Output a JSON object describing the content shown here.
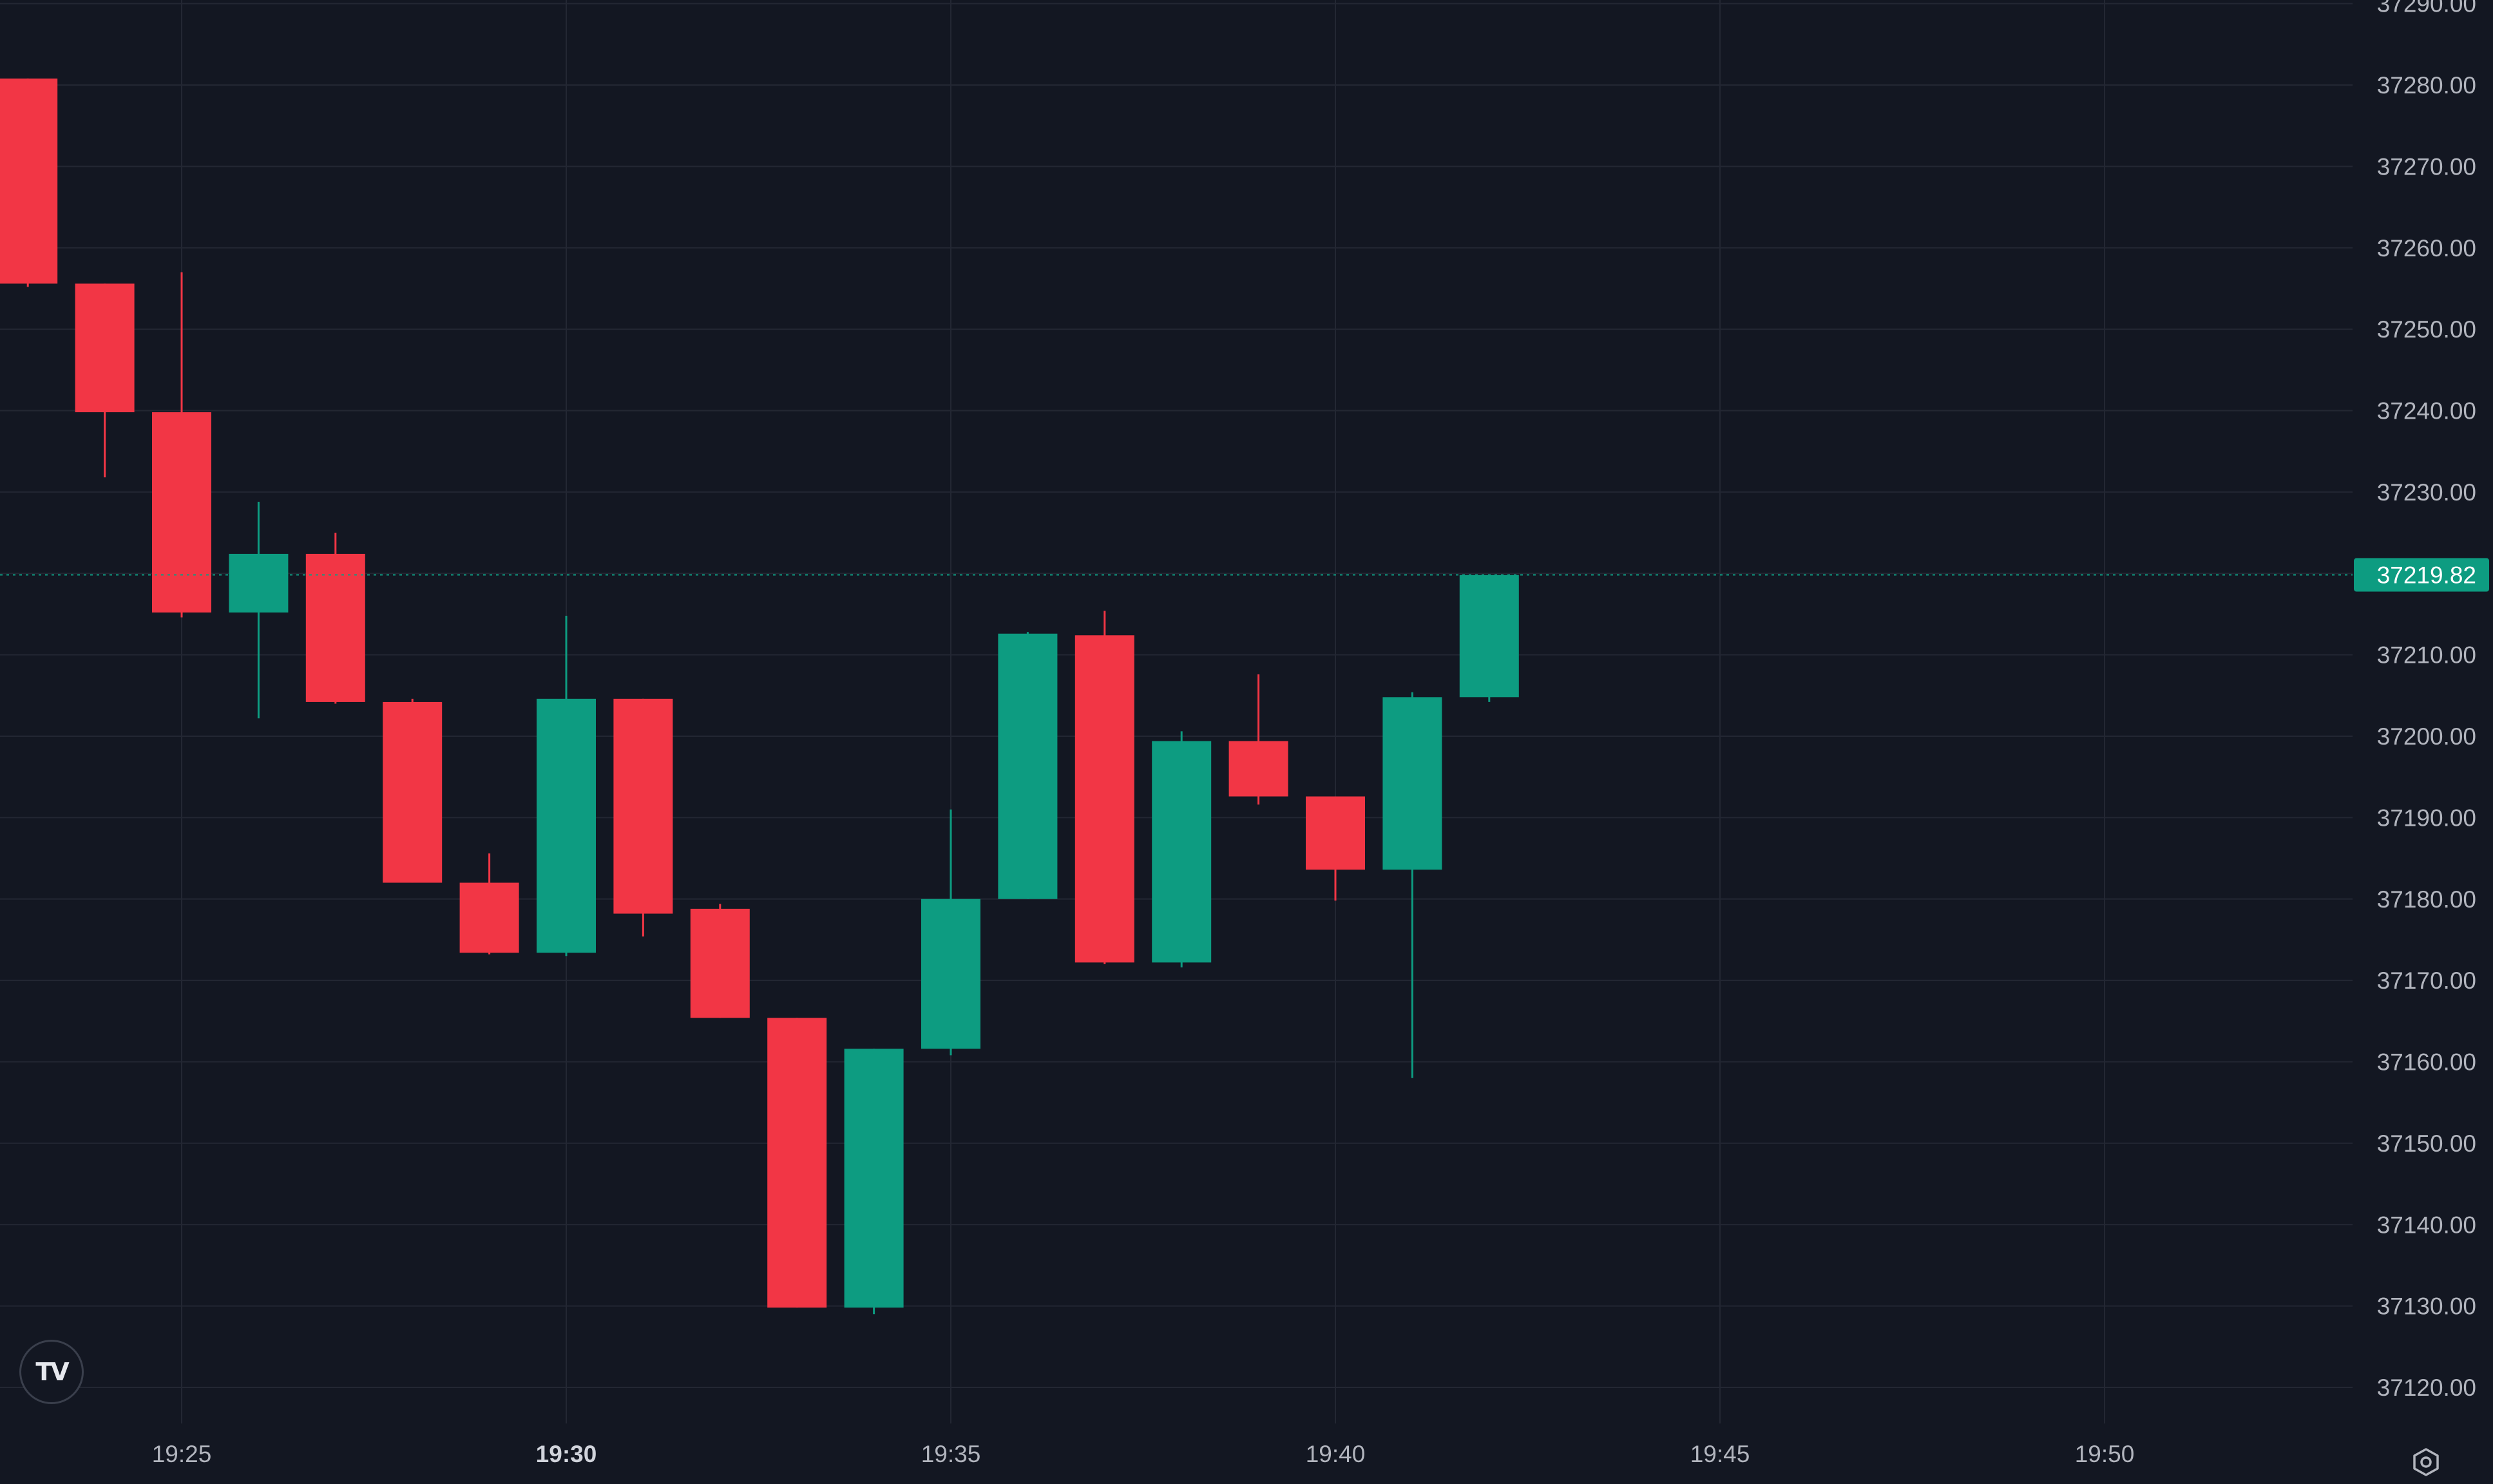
{
  "colors": {
    "background": "#131722",
    "grid": "#232733",
    "text": "#b2b5be",
    "up": "#0d9c81",
    "down": "#f23645",
    "last_price_line": "#0d9c81"
  },
  "logo": {
    "text": "TV",
    "icon": "tradingview-logo-icon"
  },
  "settings": {
    "icon": "settings-gear-icon"
  },
  "chart_data": {
    "type": "candlestick",
    "y_axis": {
      "ylim": [
        37116,
        37290
      ],
      "ticks": [
        "37290.00",
        "37280.00",
        "37270.00",
        "37260.00",
        "37250.00",
        "37240.00",
        "37230.00",
        "37220.00",
        "37210.00",
        "37200.00",
        "37190.00",
        "37180.00",
        "37170.00",
        "37160.00",
        "37150.00",
        "37140.00",
        "37130.00",
        "37120.00"
      ]
    },
    "x_axis": {
      "ticks": [
        {
          "time": "19:25",
          "bold": false
        },
        {
          "time": "19:30",
          "bold": true
        },
        {
          "time": "19:35",
          "bold": false
        },
        {
          "time": "19:40",
          "bold": false
        },
        {
          "time": "19:45",
          "bold": false
        },
        {
          "time": "19:50",
          "bold": false
        }
      ]
    },
    "last_price": {
      "label": "37219.82",
      "value": 37219.82
    },
    "candles": [
      {
        "time": "19:23",
        "open": 37280.8,
        "high": 37280.8,
        "low": 37255.2,
        "close": 37255.6
      },
      {
        "time": "19:24",
        "open": 37255.6,
        "high": 37255.6,
        "low": 37231.8,
        "close": 37239.8
      },
      {
        "time": "19:25",
        "open": 37239.8,
        "high": 37257.0,
        "low": 37214.6,
        "close": 37215.2
      },
      {
        "time": "19:26",
        "open": 37215.2,
        "high": 37228.8,
        "low": 37202.2,
        "close": 37222.4
      },
      {
        "time": "19:27",
        "open": 37222.4,
        "high": 37225.0,
        "low": 37204.0,
        "close": 37204.2
      },
      {
        "time": "19:28",
        "open": 37204.2,
        "high": 37204.6,
        "low": 37182.0,
        "close": 37182.0
      },
      {
        "time": "19:29",
        "open": 37182.0,
        "high": 37185.6,
        "low": 37173.2,
        "close": 37173.4
      },
      {
        "time": "19:30",
        "open": 37173.4,
        "high": 37214.8,
        "low": 37173.0,
        "close": 37204.6
      },
      {
        "time": "19:31",
        "open": 37204.6,
        "high": 37204.6,
        "low": 37175.4,
        "close": 37178.2
      },
      {
        "time": "19:32",
        "open": 37178.8,
        "high": 37179.4,
        "low": 37165.4,
        "close": 37165.4
      },
      {
        "time": "19:33",
        "open": 37165.4,
        "high": 37165.4,
        "low": 37129.8,
        "close": 37129.8
      },
      {
        "time": "19:34",
        "open": 37129.8,
        "high": 37161.6,
        "low": 37129.0,
        "close": 37161.6
      },
      {
        "time": "19:35",
        "open": 37161.6,
        "high": 37191.0,
        "low": 37160.8,
        "close": 37180.0
      },
      {
        "time": "19:36",
        "open": 37180.0,
        "high": 37212.8,
        "low": 37180.0,
        "close": 37212.6
      },
      {
        "time": "19:37",
        "open": 37212.4,
        "high": 37215.4,
        "low": 37172.0,
        "close": 37172.2
      },
      {
        "time": "19:38",
        "open": 37172.2,
        "high": 37200.6,
        "low": 37171.6,
        "close": 37199.4
      },
      {
        "time": "19:39",
        "open": 37199.4,
        "high": 37207.6,
        "low": 37191.6,
        "close": 37192.6
      },
      {
        "time": "19:40",
        "open": 37192.6,
        "high": 37192.6,
        "low": 37179.8,
        "close": 37183.6
      },
      {
        "time": "19:41",
        "open": 37183.6,
        "high": 37205.4,
        "low": 37158.0,
        "close": 37204.8
      },
      {
        "time": "19:42",
        "open": 37204.8,
        "high": 37219.8,
        "low": 37204.2,
        "close": 37219.8
      }
    ]
  }
}
